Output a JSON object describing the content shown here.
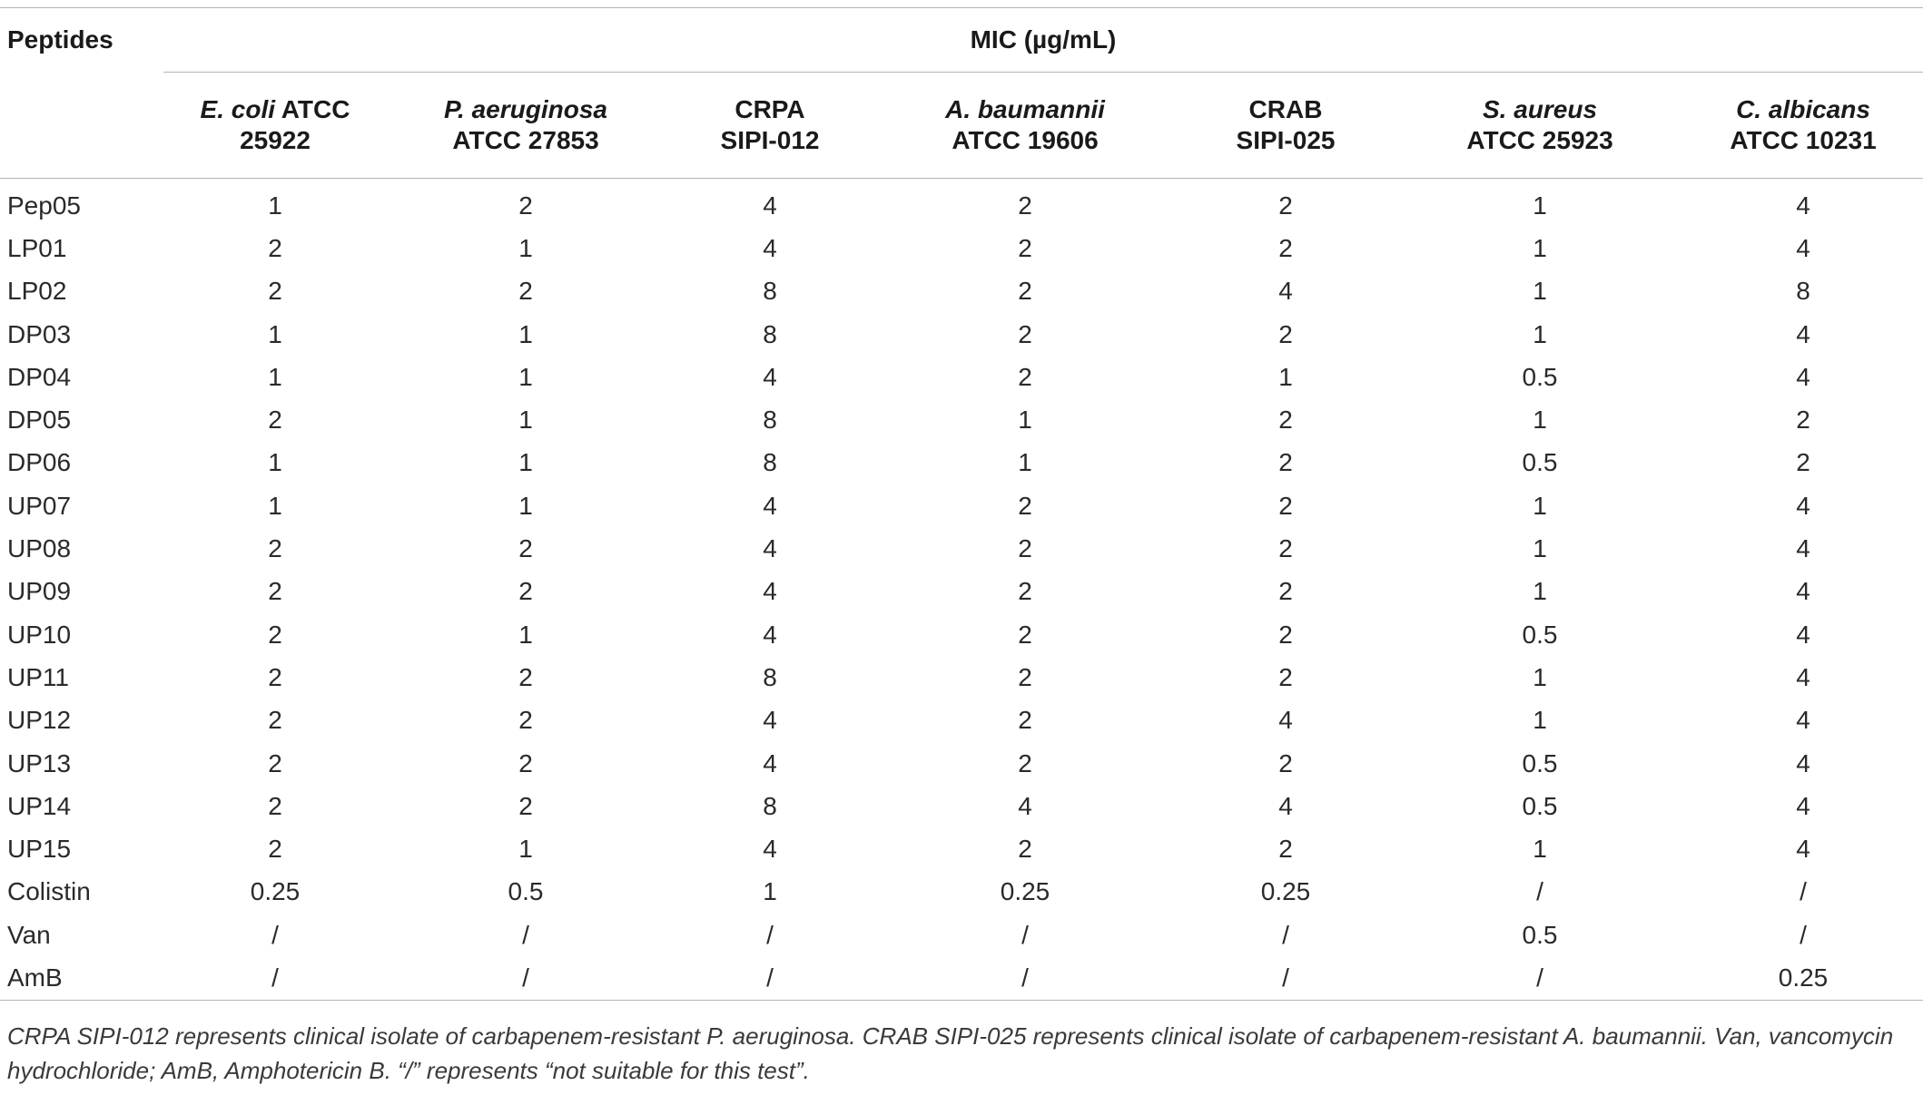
{
  "table": {
    "row_header": "Peptides",
    "group_header": "MIC (µg/mL)",
    "columns": [
      {
        "organism": "E. coli",
        "strain": "ATCC",
        "strain2": "25922"
      },
      {
        "organism": "P. aeruginosa",
        "strain": "",
        "strain2": "ATCC 27853"
      },
      {
        "organism": "",
        "strain": "CRPA",
        "strain2": "SIPI-012"
      },
      {
        "organism": "A. baumannii",
        "strain": "",
        "strain2": "ATCC 19606"
      },
      {
        "organism": "",
        "strain": "CRAB",
        "strain2": "SIPI-025"
      },
      {
        "organism": "S. aureus",
        "strain": "",
        "strain2": "ATCC 25923"
      },
      {
        "organism": "C. albicans",
        "strain": "",
        "strain2": "ATCC 10231"
      }
    ],
    "rows": [
      {
        "name": "Pep05",
        "values": [
          "1",
          "2",
          "4",
          "2",
          "2",
          "1",
          "4"
        ]
      },
      {
        "name": "LP01",
        "values": [
          "2",
          "1",
          "4",
          "2",
          "2",
          "1",
          "4"
        ]
      },
      {
        "name": "LP02",
        "values": [
          "2",
          "2",
          "8",
          "2",
          "4",
          "1",
          "8"
        ]
      },
      {
        "name": "DP03",
        "values": [
          "1",
          "1",
          "8",
          "2",
          "2",
          "1",
          "4"
        ]
      },
      {
        "name": "DP04",
        "values": [
          "1",
          "1",
          "4",
          "2",
          "1",
          "0.5",
          "4"
        ]
      },
      {
        "name": "DP05",
        "values": [
          "2",
          "1",
          "8",
          "1",
          "2",
          "1",
          "2"
        ]
      },
      {
        "name": "DP06",
        "values": [
          "1",
          "1",
          "8",
          "1",
          "2",
          "0.5",
          "2"
        ]
      },
      {
        "name": "UP07",
        "values": [
          "1",
          "1",
          "4",
          "2",
          "2",
          "1",
          "4"
        ]
      },
      {
        "name": "UP08",
        "values": [
          "2",
          "2",
          "4",
          "2",
          "2",
          "1",
          "4"
        ]
      },
      {
        "name": "UP09",
        "values": [
          "2",
          "2",
          "4",
          "2",
          "2",
          "1",
          "4"
        ]
      },
      {
        "name": "UP10",
        "values": [
          "2",
          "1",
          "4",
          "2",
          "2",
          "0.5",
          "4"
        ]
      },
      {
        "name": "UP11",
        "values": [
          "2",
          "2",
          "8",
          "2",
          "2",
          "1",
          "4"
        ]
      },
      {
        "name": "UP12",
        "values": [
          "2",
          "2",
          "4",
          "2",
          "4",
          "1",
          "4"
        ]
      },
      {
        "name": "UP13",
        "values": [
          "2",
          "2",
          "4",
          "2",
          "2",
          "0.5",
          "4"
        ]
      },
      {
        "name": "UP14",
        "values": [
          "2",
          "2",
          "8",
          "4",
          "4",
          "0.5",
          "4"
        ]
      },
      {
        "name": "UP15",
        "values": [
          "2",
          "1",
          "4",
          "2",
          "2",
          "1",
          "4"
        ]
      },
      {
        "name": "Colistin",
        "values": [
          "0.25",
          "0.5",
          "1",
          "0.25",
          "0.25",
          "/",
          "/"
        ]
      },
      {
        "name": "Van",
        "values": [
          "/",
          "/",
          "/",
          "/",
          "/",
          "0.5",
          "/"
        ]
      },
      {
        "name": "AmB",
        "values": [
          "/",
          "/",
          "/",
          "/",
          "/",
          "/",
          "0.25"
        ]
      }
    ]
  },
  "footnote": "CRPA SIPI-012 represents clinical isolate of carbapenem-resistant P. aeruginosa. CRAB SIPI-025 represents clinical isolate of carbapenem-resistant A. baumannii. Van, vancomycin hydrochloride; AmB, Amphotericin B. “/” represents “not suitable for this test”."
}
